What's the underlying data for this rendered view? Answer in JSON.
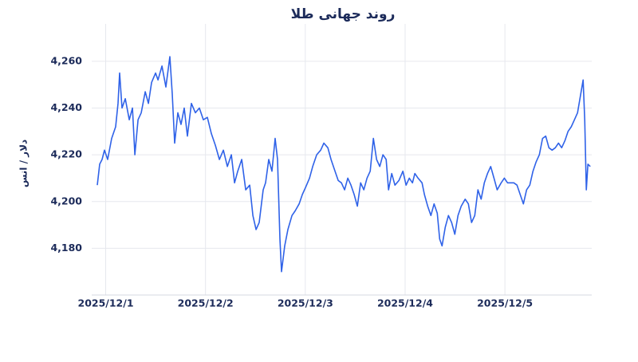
{
  "chart_data": {
    "type": "line",
    "title": "روند جهانی طلا",
    "y_label": "دلار / انس",
    "xlim": [
      0.86,
      5.87
    ],
    "xticks": [
      {
        "value": 1,
        "label": "2025/12/1"
      },
      {
        "value": 2,
        "label": "2025/12/2"
      },
      {
        "value": 3,
        "label": "2025/12/3"
      },
      {
        "value": 4,
        "label": "2025/12/4"
      },
      {
        "value": 5,
        "label": "2025/12/5"
      }
    ],
    "ylim": [
      4160,
      4276
    ],
    "yticks": [
      {
        "value": 4180,
        "label": "4,180"
      },
      {
        "value": 4200,
        "label": "4,200"
      },
      {
        "value": 4220,
        "label": "4,220"
      },
      {
        "value": 4240,
        "label": "4,240"
      },
      {
        "value": 4260,
        "label": "4,260"
      }
    ],
    "grid": true,
    "series": [
      {
        "color": "#2f62e8",
        "x": [
          0.916,
          0.94,
          0.964,
          0.988,
          1.02,
          1.06,
          1.1,
          1.124,
          1.14,
          1.164,
          1.196,
          1.236,
          1.268,
          1.292,
          1.324,
          1.356,
          1.396,
          1.428,
          1.46,
          1.5,
          1.524,
          1.564,
          1.603,
          1.643,
          1.667,
          1.691,
          1.723,
          1.755,
          1.787,
          1.819,
          1.859,
          1.899,
          1.939,
          1.979,
          2.019,
          2.059,
          2.099,
          2.139,
          2.179,
          2.219,
          2.259,
          2.291,
          2.323,
          2.363,
          2.403,
          2.443,
          2.475,
          2.507,
          2.538,
          2.578,
          2.602,
          2.634,
          2.666,
          2.698,
          2.722,
          2.746,
          2.762,
          2.794,
          2.826,
          2.866,
          2.898,
          2.938,
          2.97,
          3.002,
          3.042,
          3.074,
          3.114,
          3.154,
          3.186,
          3.226,
          3.258,
          3.298,
          3.33,
          3.362,
          3.394,
          3.426,
          3.458,
          3.49,
          3.522,
          3.554,
          3.586,
          3.618,
          3.65,
          3.682,
          3.714,
          3.746,
          3.778,
          3.81,
          3.834,
          3.866,
          3.898,
          3.938,
          3.978,
          4.01,
          4.042,
          4.074,
          4.098,
          4.13,
          4.17,
          4.194,
          4.226,
          4.258,
          4.29,
          4.322,
          4.346,
          4.37,
          4.402,
          4.434,
          4.466,
          4.498,
          4.53,
          4.562,
          4.602,
          4.634,
          4.666,
          4.698,
          4.73,
          4.762,
          4.794,
          4.826,
          4.858,
          4.89,
          4.922,
          4.962,
          4.994,
          5.026,
          5.057,
          5.089,
          5.121,
          5.153,
          5.185,
          5.217,
          5.249,
          5.281,
          5.313,
          5.345,
          5.377,
          5.409,
          5.441,
          5.473,
          5.505,
          5.537,
          5.569,
          5.601,
          5.633,
          5.665,
          5.697,
          5.728,
          5.76,
          5.784,
          5.8,
          5.816,
          5.832,
          5.856
        ],
        "values": [
          4207,
          4216,
          4218,
          4222,
          4218,
          4227,
          4232,
          4242,
          4255,
          4240,
          4244,
          4235,
          4240,
          4220,
          4235,
          4238,
          4247,
          4242,
          4251,
          4255,
          4252,
          4258,
          4249,
          4262,
          4246,
          4225,
          4238,
          4233,
          4240,
          4228,
          4242,
          4238,
          4240,
          4235,
          4236,
          4229,
          4224,
          4218,
          4222,
          4215,
          4220,
          4208,
          4213,
          4218,
          4205,
          4207,
          4194,
          4188,
          4191,
          4205,
          4208,
          4218,
          4213,
          4227,
          4218,
          4184,
          4170,
          4181,
          4188,
          4194,
          4196,
          4199,
          4203,
          4206,
          4210,
          4215,
          4220,
          4222,
          4225,
          4223,
          4218,
          4213,
          4209,
          4208,
          4205,
          4210,
          4207,
          4203,
          4198,
          4208,
          4205,
          4210,
          4213,
          4227,
          4218,
          4215,
          4220,
          4218,
          4205,
          4212,
          4207,
          4209,
          4213,
          4207,
          4210,
          4208,
          4212,
          4210,
          4208,
          4203,
          4198,
          4194,
          4199,
          4195,
          4184,
          4181,
          4189,
          4194,
          4191,
          4186,
          4194,
          4198,
          4201,
          4199,
          4191,
          4194,
          4205,
          4201,
          4208,
          4212,
          4215,
          4210,
          4205,
          4208,
          4210,
          4208,
          4208,
          4208,
          4207,
          4203,
          4199,
          4205,
          4207,
          4213,
          4217,
          4220,
          4227,
          4228,
          4223,
          4222,
          4223,
          4225,
          4223,
          4226,
          4230,
          4232,
          4235,
          4238,
          4246,
          4252,
          4235,
          4205,
          4216,
          4215
        ]
      }
    ]
  }
}
